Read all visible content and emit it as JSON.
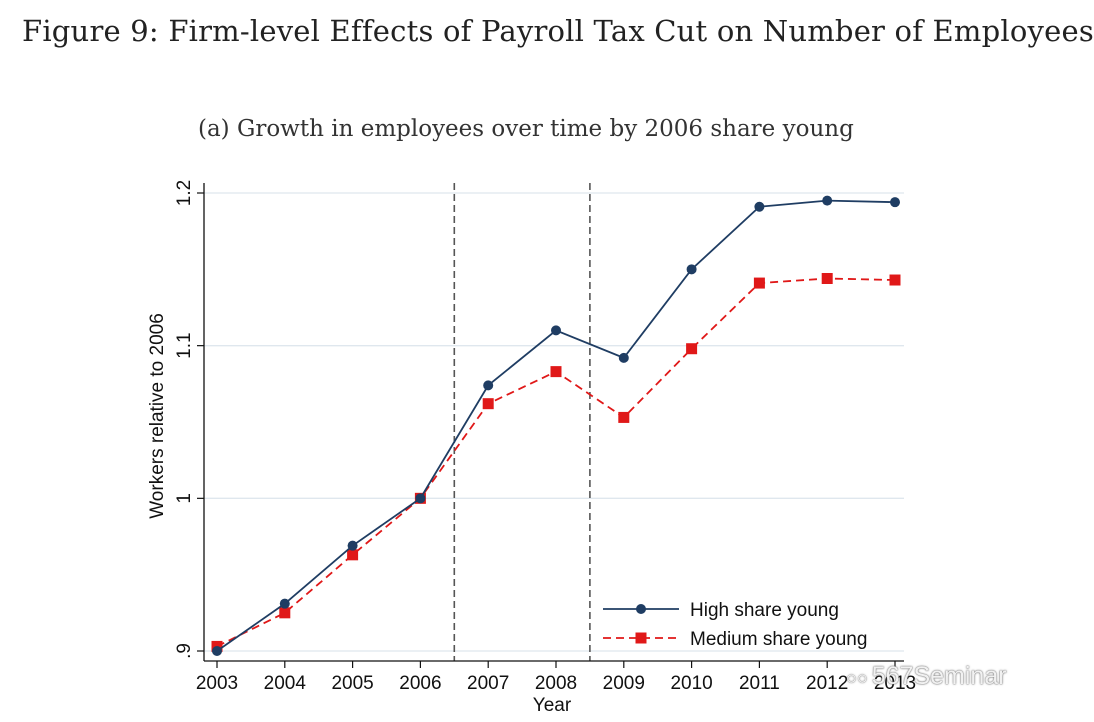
{
  "figure_title": "Figure 9: Firm-level Effects of Payroll Tax Cut on Number of Employees",
  "watermark": {
    "text": "567Seminar",
    "icon": "wechat-icon"
  },
  "colors": {
    "high": "#1f3d63",
    "medium": "#e01818",
    "grid": "#dfe7ee",
    "vline": "#555555"
  },
  "chart_data": {
    "type": "line",
    "title": "(a) Growth in employees over time by 2006 share young",
    "xlabel": "Year",
    "ylabel": "Workers relative to 2006",
    "categories": [
      "2003",
      "2004",
      "2005",
      "2006",
      "2007",
      "2008",
      "2009",
      "2010",
      "2011",
      "2012",
      "2013"
    ],
    "xtick_labels": [
      "2003",
      "2004",
      "2005",
      "2006",
      "2007",
      "2008",
      "2009",
      "2010",
      "2011",
      "2012",
      "2013"
    ],
    "ylim": [
      0.9,
      1.2
    ],
    "yticks": [
      0.9,
      1.0,
      1.1,
      1.2
    ],
    "ytick_labels": [
      ".9",
      "1",
      "1.1",
      "1.2"
    ],
    "grid": true,
    "reference_lines_x": [
      2006.5,
      2008.5
    ],
    "legend_position": "bottom-right",
    "series": [
      {
        "name": "High share young",
        "marker": "circle",
        "line": "solid",
        "values": [
          0.9,
          0.931,
          0.969,
          1.0,
          1.074,
          1.11,
          1.092,
          1.15,
          1.191,
          1.195,
          1.194
        ]
      },
      {
        "name": "Medium share young",
        "marker": "square",
        "line": "dashed",
        "values": [
          0.903,
          0.925,
          0.963,
          1.0,
          1.062,
          1.083,
          1.053,
          1.098,
          1.141,
          1.144,
          1.143
        ]
      }
    ]
  }
}
